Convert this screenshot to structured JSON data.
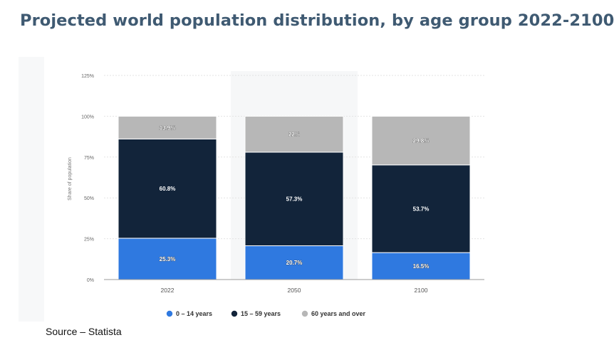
{
  "page": {
    "title": "Projected world population distribution, by age group 2022-2100",
    "source": "Source – Statista"
  },
  "chart_data": {
    "type": "bar",
    "stacked": true,
    "title": "Projected world population distribution, by age group 2022-2100",
    "xlabel": "",
    "ylabel": "Share of population",
    "ylim": [
      0,
      125
    ],
    "yticks": [
      0,
      25,
      50,
      75,
      100,
      125
    ],
    "ytick_labels": [
      "0%",
      "25%",
      "50%",
      "75%",
      "100%",
      "125%"
    ],
    "categories": [
      "2022",
      "2050",
      "2100"
    ],
    "series": [
      {
        "name": "0 – 14 years",
        "values": [
          25.3,
          20.7,
          16.5
        ],
        "labels": [
          "25.3%",
          "20.7%",
          "16.5%"
        ],
        "color": "#2f79e0"
      },
      {
        "name": "15 – 59 years",
        "values": [
          60.8,
          57.3,
          53.7
        ],
        "labels": [
          "60.8%",
          "57.3%",
          "53.7%"
        ],
        "color": "#12243a"
      },
      {
        "name": "60 years and over",
        "values": [
          13.9,
          22,
          29.8
        ],
        "labels": [
          "13.9%",
          "22%",
          "29.8%"
        ],
        "color": "#b7b7b7"
      }
    ],
    "grid": true,
    "legend": "bottom"
  }
}
